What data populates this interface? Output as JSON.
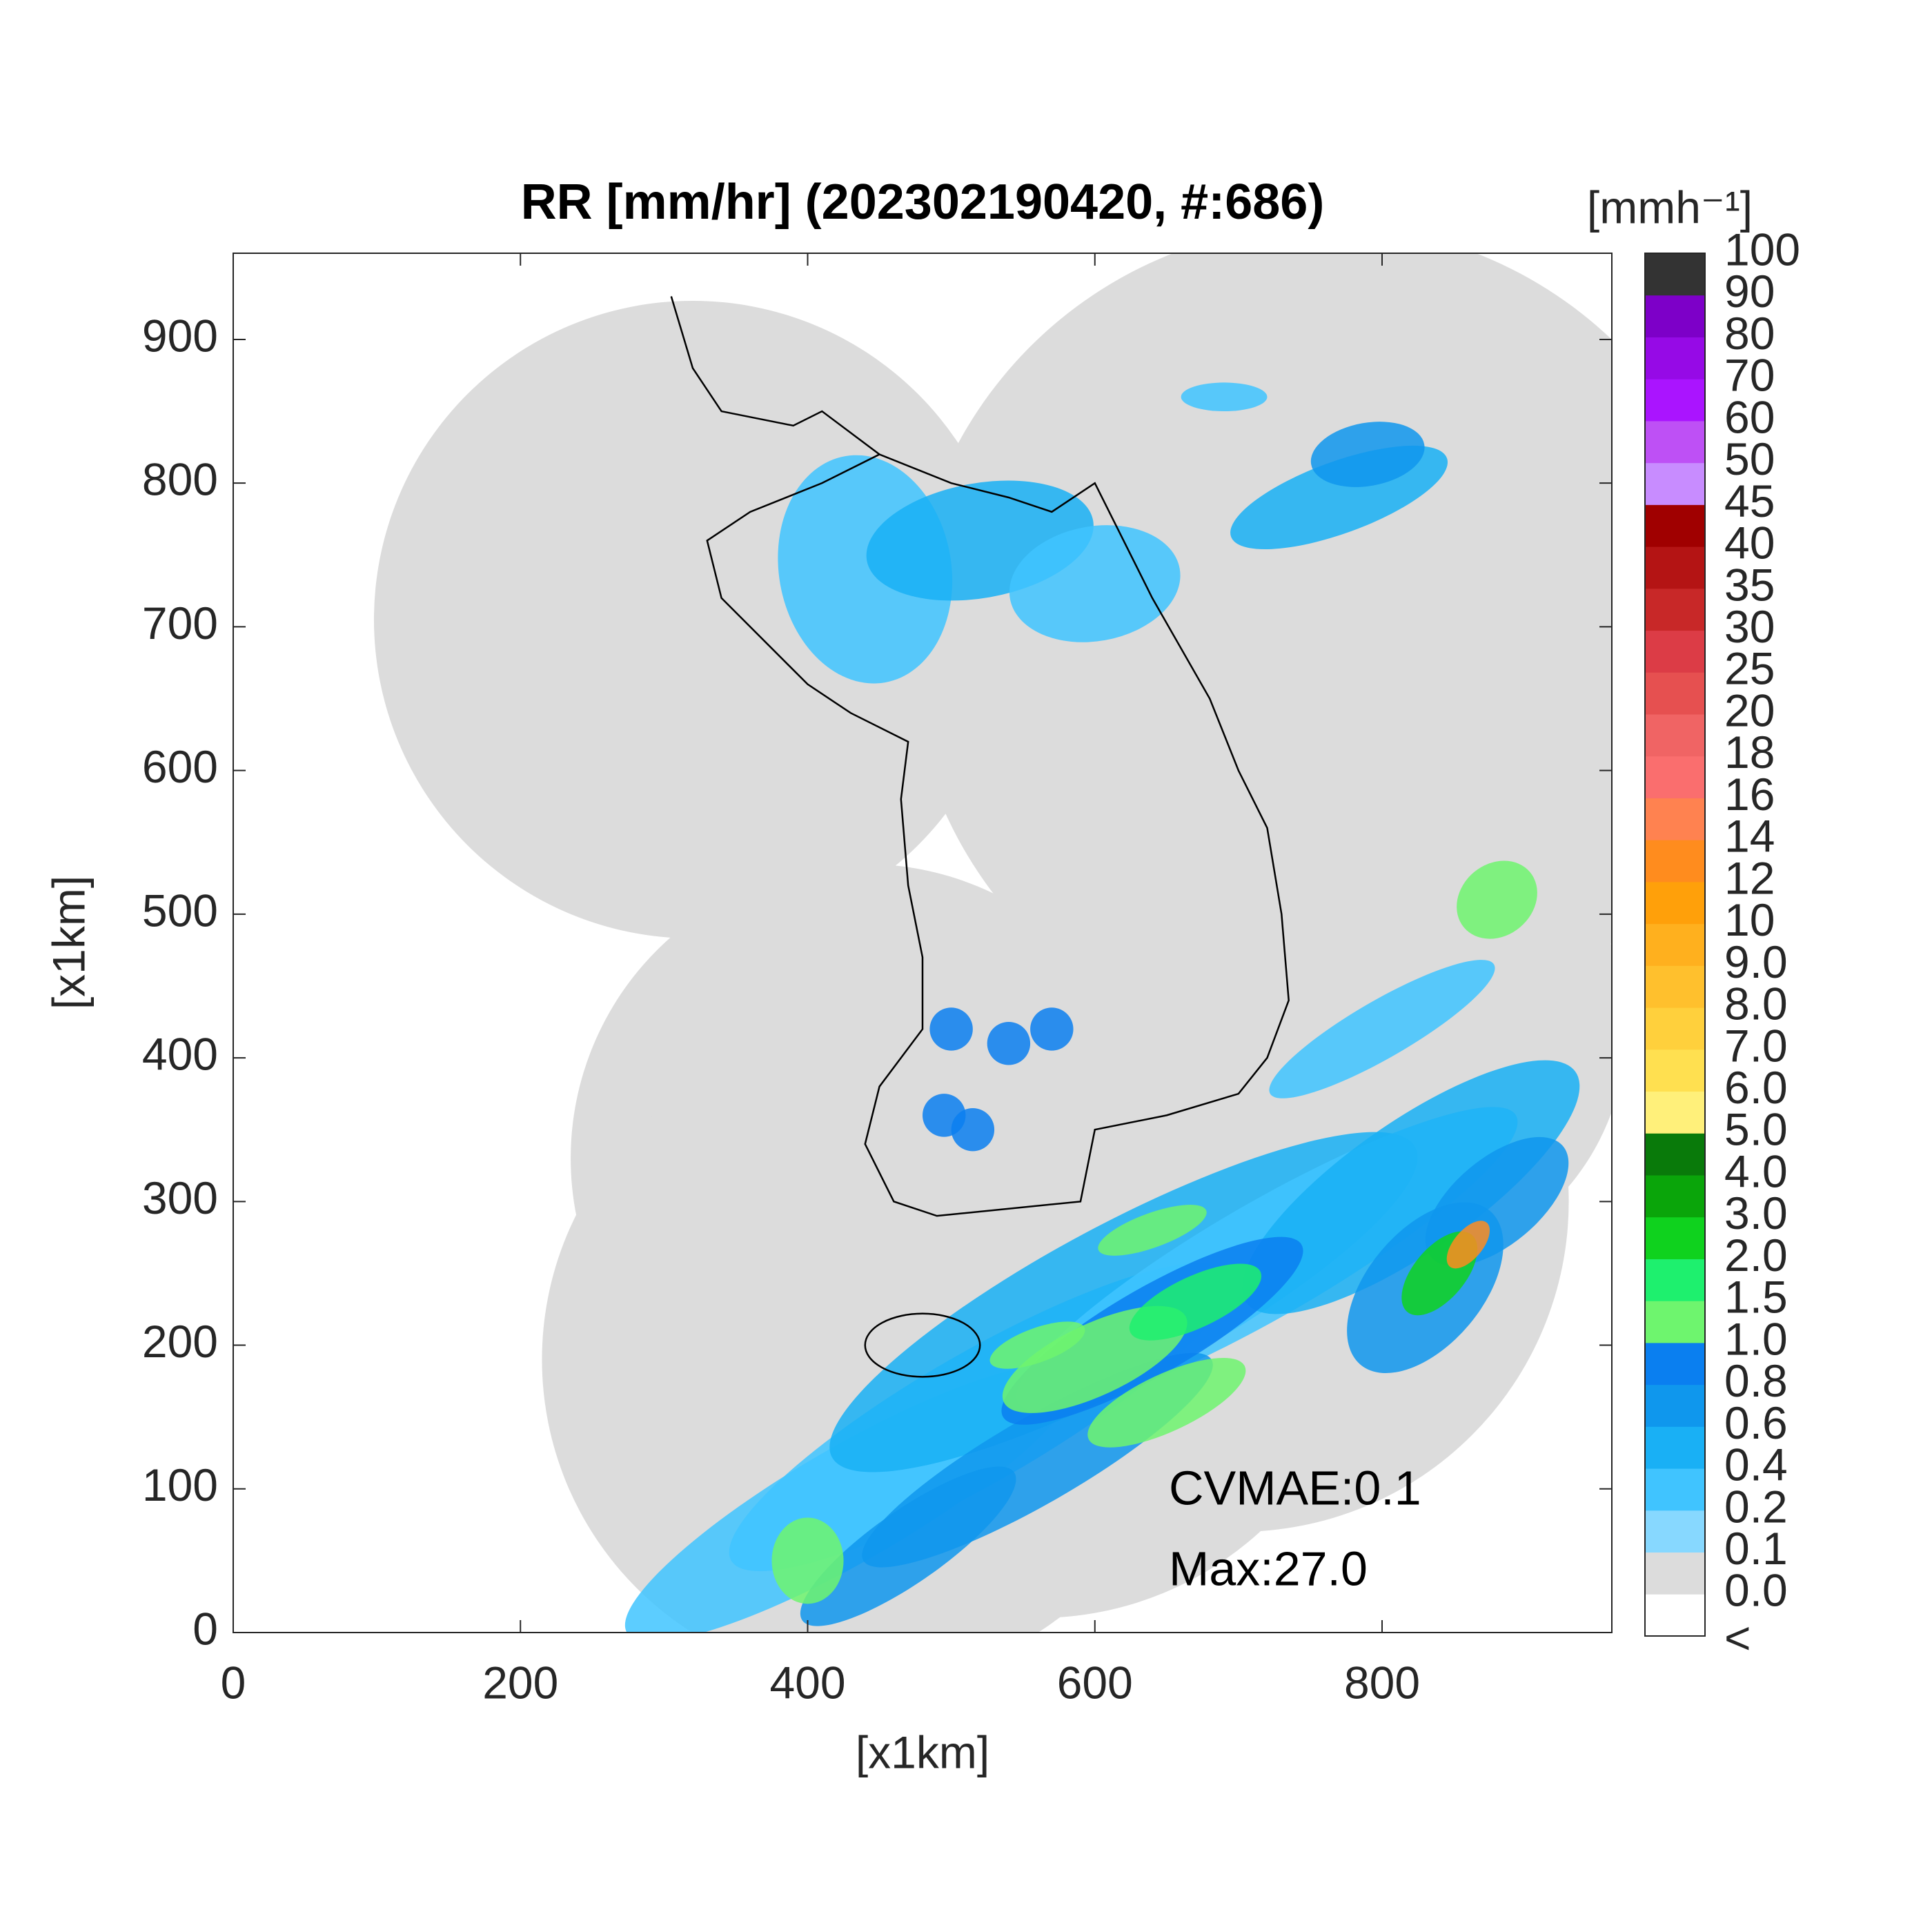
{
  "chart_data": {
    "type": "radar-map",
    "title": "RR [mm/hr] (202302190420, #:686)",
    "xlabel": "[x1km]",
    "ylabel": "[x1km]",
    "xlim": [
      0,
      960
    ],
    "ylim": [
      0,
      960
    ],
    "xticks": [
      0,
      200,
      400,
      600,
      800
    ],
    "yticks": [
      0,
      100,
      200,
      300,
      400,
      500,
      600,
      700,
      800,
      900
    ],
    "annotations": [
      "CVMAE:0.1",
      "Max:27.0"
    ],
    "colorbar": {
      "label": "[mmh⁻¹]",
      "under_label": "<",
      "ticks": [
        {
          "value": 0,
          "label": "0.0"
        },
        0.1,
        0.2,
        0.4,
        0.6,
        0.8,
        {
          "value": 1,
          "label": "1.0"
        },
        1.5,
        {
          "value": 2,
          "label": "2.0"
        },
        {
          "value": 3,
          "label": "3.0"
        },
        {
          "value": 4,
          "label": "4.0"
        },
        {
          "value": 5,
          "label": "5.0"
        },
        {
          "value": 6,
          "label": "6.0"
        },
        {
          "value": 7,
          "label": "7.0"
        },
        {
          "value": 8,
          "label": "8.0"
        },
        {
          "value": 9,
          "label": "9.0"
        },
        10,
        12,
        14,
        16,
        18,
        20,
        25,
        30,
        35,
        40,
        45,
        50,
        60,
        70,
        80,
        90,
        100
      ],
      "colors": [
        "#ffffff",
        "#dcdcdc",
        "#87d8ff",
        "#40c4ff",
        "#19b0f5",
        "#0f97ed",
        "#0a7ff0",
        "#6ef56e",
        "#1ef06e",
        "#0fd21e",
        "#0aa50a",
        "#097a0a",
        "#fff07a",
        "#ffe050",
        "#ffd03c",
        "#ffc02d",
        "#ffb01e",
        "#ffa00a",
        "#ff8c1e",
        "#ff8250",
        "#fa6e6e",
        "#f06464",
        "#e65050",
        "#dc3c46",
        "#c82828",
        "#b41414",
        "#a00000",
        "#c88cff",
        "#be50f5",
        "#aa14ff",
        "#960ae6",
        "#7d00c8",
        "#333333"
      ]
    }
  }
}
